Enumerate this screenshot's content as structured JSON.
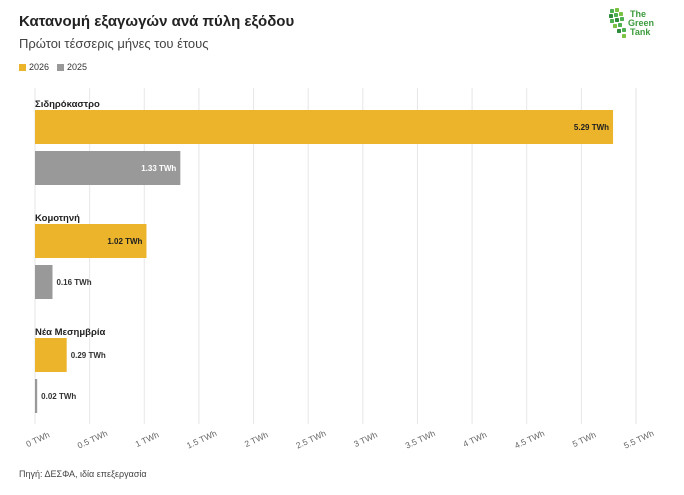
{
  "header": {
    "title": "Κατανομή εξαγωγών ανά πύλη εξόδου",
    "subtitle": "Πρώτοι τέσσερις μήνες του έτους"
  },
  "logo": {
    "line1": "The",
    "line2": "Green",
    "line3": "Tank",
    "icon": "green-tank-logo-icon"
  },
  "legend": [
    {
      "label": "2026",
      "color": "#EBB42A"
    },
    {
      "label": "2025",
      "color": "#999999"
    }
  ],
  "source": "Πηγή: ΔΕΣΦΑ, ιδία επεξεργασία",
  "chart_data": {
    "type": "bar",
    "orientation": "horizontal",
    "categories": [
      "Σιδηρόκαστρο",
      "Κομοτηνή",
      "Νέα Μεσημβρία"
    ],
    "series": [
      {
        "name": "2026",
        "color": "#EBB42A",
        "values": [
          5.29,
          1.02,
          0.29
        ],
        "labels": [
          "5.29 TWh",
          "1.02 TWh",
          "0.29 TWh"
        ]
      },
      {
        "name": "2025",
        "color": "#999999",
        "values": [
          1.33,
          0.16,
          0.02
        ],
        "labels": [
          "1.33 TWh",
          "0.16 TWh",
          "0.02 TWh"
        ]
      }
    ],
    "xlim": [
      0,
      5.5
    ],
    "ticks": [
      0,
      0.5,
      1,
      1.5,
      2,
      2.5,
      3,
      3.5,
      4,
      4.5,
      5,
      5.5
    ],
    "tick_labels": [
      "0 TWh",
      "0.5 TWh",
      "1 TWh",
      "1.5 TWh",
      "2 TWh",
      "2.5 TWh",
      "3 TWh",
      "3.5 TWh",
      "4 TWh",
      "4.5 TWh",
      "5 TWh",
      "5.5 TWh"
    ],
    "grid": true,
    "legend_position": "top-left"
  }
}
